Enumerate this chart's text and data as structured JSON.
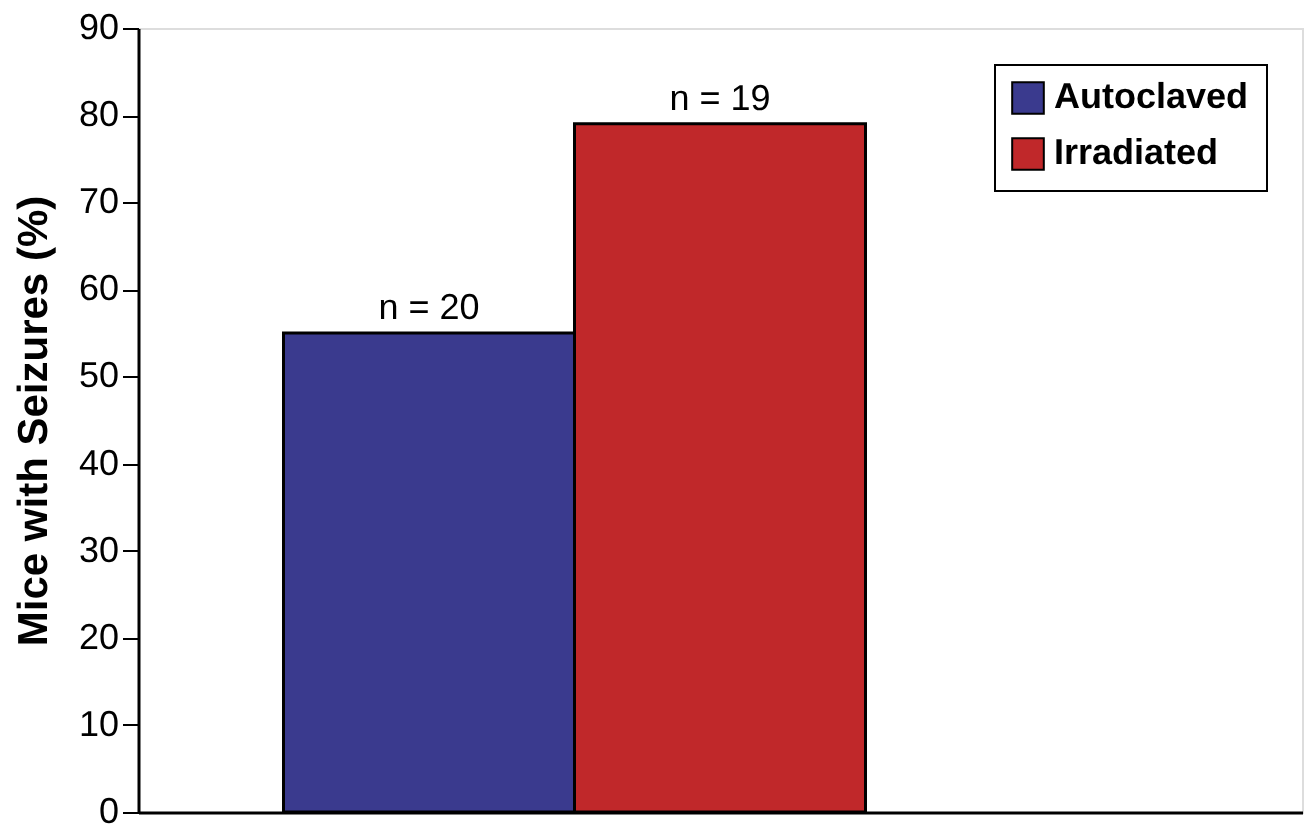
{
  "chart_data": {
    "type": "bar",
    "ylabel": "Mice with Seizures (%)",
    "categories": [
      null
    ],
    "series": [
      {
        "name": "Autoclaved",
        "color": "#3a3a8e",
        "values": [
          55
        ]
      },
      {
        "name": "Irradiated",
        "color": "#c0282a",
        "values": [
          79
        ]
      }
    ],
    "annotations": [
      {
        "text": "n = 20",
        "y": 55
      },
      {
        "text": "n = 19",
        "y": 79
      }
    ],
    "ylim": [
      0,
      90
    ],
    "yticks": [
      0,
      10,
      20,
      30,
      40,
      50,
      60,
      70,
      80,
      90
    ],
    "grid": false,
    "legend": "top right",
    "tick_labels": "y"
  }
}
